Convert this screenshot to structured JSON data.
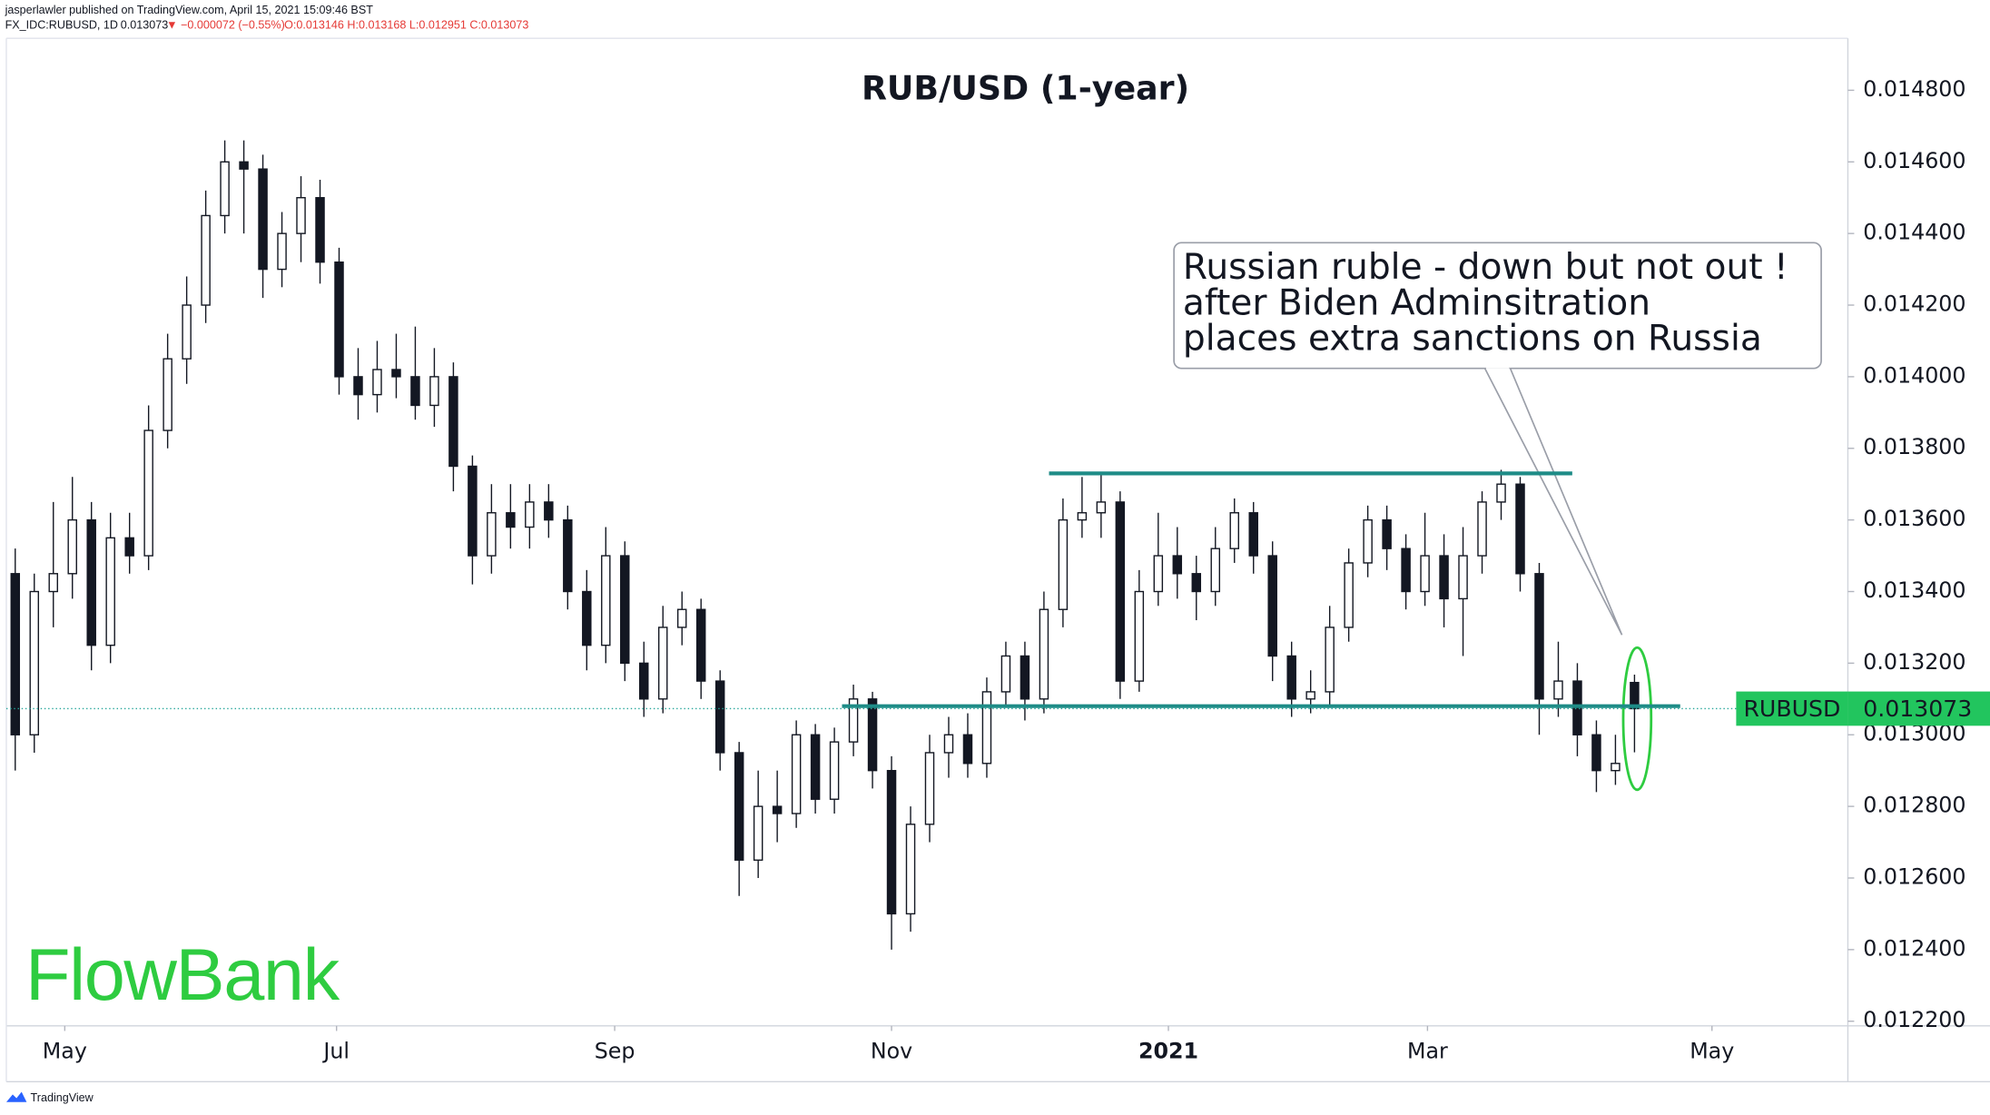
{
  "chart_data": {
    "type": "candlestick",
    "title": "RUB/USD (1-year)",
    "header": {
      "publisher": "jasperlawler published on TradingView.com, April 15, 2021 15:09:46 BST",
      "symbol": "FX_IDC:RUBUSD, 1D",
      "price": "0.013073",
      "change": "▼ −0.000072 (−0.55%)",
      "ohlc": "O:0.013146 H:0.013168 L:0.012951 C:0.013073"
    },
    "symbol": "RUBUSD",
    "last_price": 0.013073,
    "annotation": [
      "Russian ruble - down but not out !",
      "after Biden Adminsitration",
      "places extra sanctions on Russia"
    ],
    "logo": "FlowBank",
    "footer": "TradingView",
    "x": [
      0,
      3,
      6,
      9,
      12,
      15,
      18,
      21,
      24,
      27,
      30,
      33,
      36,
      39,
      42,
      45,
      48,
      51,
      54,
      57,
      60,
      63,
      66,
      69,
      72,
      75,
      78,
      81,
      84,
      87,
      90,
      93,
      96,
      99,
      102,
      105,
      108,
      111,
      114,
      117,
      120,
      123,
      126,
      129,
      132,
      135,
      138,
      141,
      144,
      147,
      150,
      153,
      156,
      159,
      162,
      165,
      168,
      171,
      174,
      177,
      180,
      183,
      186,
      189,
      192,
      195,
      198,
      201,
      204,
      207,
      210,
      213,
      216,
      219,
      222,
      225,
      228,
      231,
      234,
      237,
      240,
      243,
      246,
      249,
      252,
      255
    ],
    "open": [
      0.01345,
      0.013,
      0.0134,
      0.01345,
      0.0136,
      0.01325,
      0.01355,
      0.0135,
      0.01385,
      0.01405,
      0.0142,
      0.01445,
      0.0146,
      0.01458,
      0.0143,
      0.0144,
      0.0145,
      0.01432,
      0.014,
      0.01395,
      0.01402,
      0.014,
      0.01392,
      0.014,
      0.01375,
      0.0135,
      0.01362,
      0.01358,
      0.01365,
      0.0136,
      0.0134,
      0.01325,
      0.0135,
      0.0132,
      0.0131,
      0.0133,
      0.01335,
      0.01315,
      0.01295,
      0.01265,
      0.0128,
      0.01278,
      0.013,
      0.01282,
      0.01298,
      0.0131,
      0.0129,
      0.0125,
      0.01275,
      0.01295,
      0.013,
      0.01292,
      0.01312,
      0.01322,
      0.0131,
      0.01335,
      0.0136,
      0.01362,
      0.01365,
      0.01315,
      0.0134,
      0.0135,
      0.01345,
      0.0134,
      0.01352,
      0.01362,
      0.0135,
      0.01322,
      0.0131,
      0.01312,
      0.0133,
      0.01348,
      0.0136,
      0.01352,
      0.0134,
      0.0135,
      0.01338,
      0.0135,
      0.01365,
      0.0137,
      0.01345,
      0.0131,
      0.01315,
      0.013,
      0.0129,
      0.013146
    ],
    "high": [
      0.01352,
      0.01345,
      0.01365,
      0.01372,
      0.01365,
      0.01362,
      0.01362,
      0.01392,
      0.01412,
      0.01428,
      0.01452,
      0.01466,
      0.01466,
      0.01462,
      0.01446,
      0.01456,
      0.01455,
      0.01436,
      0.01408,
      0.0141,
      0.01412,
      0.01414,
      0.01408,
      0.01404,
      0.01378,
      0.0137,
      0.0137,
      0.0137,
      0.0137,
      0.01364,
      0.01346,
      0.01358,
      0.01354,
      0.01326,
      0.01336,
      0.0134,
      0.01338,
      0.01318,
      0.01298,
      0.0129,
      0.0129,
      0.01304,
      0.01303,
      0.01302,
      0.01314,
      0.01312,
      0.01294,
      0.0128,
      0.013,
      0.01305,
      0.01306,
      0.01316,
      0.01326,
      0.01326,
      0.0134,
      0.01366,
      0.01372,
      0.01373,
      0.01368,
      0.01346,
      0.01362,
      0.01358,
      0.0135,
      0.01358,
      0.01366,
      0.01365,
      0.01354,
      0.01326,
      0.01318,
      0.01336,
      0.01352,
      0.01364,
      0.01364,
      0.01356,
      0.01362,
      0.01356,
      0.01358,
      0.01368,
      0.01374,
      0.01372,
      0.01348,
      0.01326,
      0.0132,
      0.01304,
      0.013,
      0.013168
    ],
    "low": [
      0.0129,
      0.01295,
      0.0133,
      0.01338,
      0.01318,
      0.0132,
      0.01345,
      0.01346,
      0.0138,
      0.01398,
      0.01415,
      0.0144,
      0.0144,
      0.01422,
      0.01425,
      0.01432,
      0.01426,
      0.01395,
      0.01388,
      0.0139,
      0.01394,
      0.01388,
      0.01386,
      0.01368,
      0.01342,
      0.01345,
      0.01352,
      0.01352,
      0.01355,
      0.01335,
      0.01318,
      0.0132,
      0.01315,
      0.01305,
      0.01306,
      0.01325,
      0.0131,
      0.0129,
      0.01255,
      0.0126,
      0.0127,
      0.01274,
      0.01278,
      0.01278,
      0.01294,
      0.01285,
      0.0124,
      0.01245,
      0.0127,
      0.01288,
      0.01288,
      0.01288,
      0.01308,
      0.01304,
      0.01306,
      0.0133,
      0.01355,
      0.01355,
      0.0131,
      0.01312,
      0.01336,
      0.01338,
      0.01332,
      0.01336,
      0.01348,
      0.01345,
      0.01315,
      0.01305,
      0.01306,
      0.01308,
      0.01326,
      0.01344,
      0.01346,
      0.01335,
      0.01336,
      0.0133,
      0.01322,
      0.01345,
      0.0136,
      0.0134,
      0.013,
      0.01305,
      0.01294,
      0.01284,
      0.01286,
      0.012951
    ],
    "close": [
      0.013,
      0.0134,
      0.01345,
      0.0136,
      0.01325,
      0.01355,
      0.0135,
      0.01385,
      0.01405,
      0.0142,
      0.01445,
      0.0146,
      0.01458,
      0.0143,
      0.0144,
      0.0145,
      0.01432,
      0.014,
      0.01395,
      0.01402,
      0.014,
      0.01392,
      0.014,
      0.01375,
      0.0135,
      0.01362,
      0.01358,
      0.01365,
      0.0136,
      0.0134,
      0.01325,
      0.0135,
      0.0132,
      0.0131,
      0.0133,
      0.01335,
      0.01315,
      0.01295,
      0.01265,
      0.0128,
      0.01278,
      0.013,
      0.01282,
      0.01298,
      0.0131,
      0.0129,
      0.0125,
      0.01275,
      0.01295,
      0.013,
      0.01292,
      0.01312,
      0.01322,
      0.0131,
      0.01335,
      0.0136,
      0.01362,
      0.01365,
      0.01315,
      0.0134,
      0.0135,
      0.01345,
      0.0134,
      0.01352,
      0.01362,
      0.0135,
      0.01322,
      0.0131,
      0.01312,
      0.0133,
      0.01348,
      0.0136,
      0.01352,
      0.0134,
      0.0135,
      0.01338,
      0.0135,
      0.01365,
      0.0137,
      0.01345,
      0.0131,
      0.01315,
      0.013,
      0.0129,
      0.01292,
      0.013073
    ],
    "up_color": "#ffffff",
    "down_color": "#131722",
    "levels": [
      {
        "value": 0.01373,
        "x": [
          162.8,
          245.2
        ],
        "color": "#1e8c87"
      },
      {
        "value": 0.01308,
        "x": [
          130.2,
          262.2
        ],
        "color": "#1e8c87"
      }
    ],
    "xlim": [
      -1.4,
      288.6
    ],
    "ylim": [
      0.012187,
      0.014945
    ],
    "xticks": [
      {
        "value": 7.8,
        "label": "May"
      },
      {
        "value": 50.6,
        "label": "Jul"
      },
      {
        "value": 94.4,
        "label": "Sep"
      },
      {
        "value": 138,
        "label": "Nov"
      },
      {
        "value": 181.6,
        "label": "2021"
      },
      {
        "value": 222.4,
        "label": "Mar"
      },
      {
        "value": 267.2,
        "label": "May"
      }
    ],
    "yticks": [
      {
        "value": 0.0122,
        "label": "0.012200"
      },
      {
        "value": 0.0124,
        "label": "0.012400"
      },
      {
        "value": 0.0126,
        "label": "0.012600"
      },
      {
        "value": 0.0128,
        "label": "0.012800"
      },
      {
        "value": 0.013,
        "label": "0.013000"
      },
      {
        "value": 0.0132,
        "label": "0.013200"
      },
      {
        "value": 0.0134,
        "label": "0.013400"
      },
      {
        "value": 0.0136,
        "label": "0.013600"
      },
      {
        "value": 0.0138,
        "label": "0.013800"
      },
      {
        "value": 0.014,
        "label": "0.014000"
      },
      {
        "value": 0.0142,
        "label": "0.014200"
      },
      {
        "value": 0.0144,
        "label": "0.014400"
      },
      {
        "value": 0.0146,
        "label": "0.014600"
      },
      {
        "value": 0.0148,
        "label": "0.014800"
      }
    ]
  }
}
